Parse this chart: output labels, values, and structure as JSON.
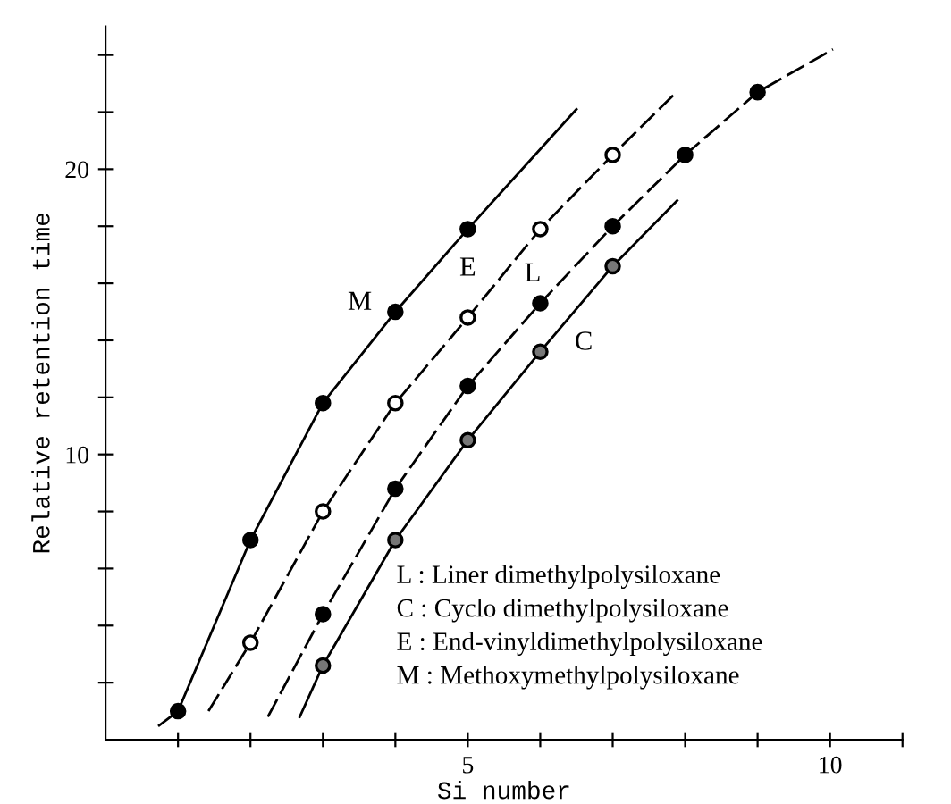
{
  "chart_data": {
    "type": "line",
    "xlabel": "Si number",
    "ylabel": "Relative retention time",
    "xlim": [
      0,
      11
    ],
    "ylim": [
      0,
      25
    ],
    "xticks": [
      {
        "value": 1,
        "label": null
      },
      {
        "value": 2,
        "label": null
      },
      {
        "value": 3,
        "label": null
      },
      {
        "value": 4,
        "label": null
      },
      5,
      {
        "value": 6,
        "label": null
      },
      {
        "value": 7,
        "label": null
      },
      {
        "value": 8,
        "label": null
      },
      {
        "value": 9,
        "label": null
      },
      10,
      {
        "value": 11,
        "label": null
      }
    ],
    "yticks": [
      {
        "value": 2,
        "label": null
      },
      {
        "value": 4,
        "label": null
      },
      {
        "value": 6,
        "label": null
      },
      {
        "value": 8,
        "label": null
      },
      10,
      {
        "value": 12,
        "label": null
      },
      {
        "value": 14,
        "label": null
      },
      {
        "value": 16,
        "label": null
      },
      {
        "value": 18,
        "label": null
      },
      20,
      {
        "value": 22,
        "label": null
      },
      {
        "value": 24,
        "label": null
      }
    ],
    "grid": false,
    "series": [
      {
        "color": "#000000",
        "line_style": "solid",
        "marker": "none",
        "x": [
          0.74,
          1,
          2,
          3,
          4,
          5,
          6.5
        ],
        "values": [
          0.5,
          1.0,
          7.0,
          11.8,
          15.0,
          17.9,
          22.1
        ]
      },
      {
        "color": "#000000",
        "line_style": "dashed",
        "marker": "none",
        "x": [
          1.42,
          2,
          3,
          4,
          5,
          6,
          7,
          7.88
        ],
        "values": [
          1.0,
          3.4,
          8.0,
          11.8,
          14.8,
          17.9,
          20.5,
          22.7
        ]
      },
      {
        "color": "#000000",
        "line_style": "dashed",
        "marker": "none",
        "x": [
          2.24,
          3,
          4,
          5,
          6,
          7,
          8,
          9,
          10.04
        ],
        "values": [
          0.8,
          4.4,
          8.8,
          12.4,
          15.3,
          18.0,
          20.5,
          22.7,
          24.2
        ]
      },
      {
        "color": "#000000",
        "line_style": "solid",
        "marker": "none",
        "x": [
          2.68,
          3,
          4,
          5,
          6,
          7,
          7.89
        ],
        "values": [
          0.8,
          2.6,
          7.0,
          10.5,
          13.6,
          16.6,
          18.9
        ]
      },
      {
        "type": "scatter",
        "color": "#000000",
        "marker": "circle",
        "x": [
          1,
          2,
          3,
          4,
          5
        ],
        "values": [
          1.0,
          7.0,
          11.8,
          15.0,
          17.9
        ]
      },
      {
        "type": "scatter",
        "color": "#ffffff",
        "marker": "circle",
        "x": [
          2,
          3,
          4,
          5,
          6,
          7
        ],
        "values": [
          3.4,
          8.0,
          11.8,
          14.8,
          17.9,
          20.5
        ]
      },
      {
        "type": "scatter",
        "color": "#000000",
        "marker": "circle",
        "x": [
          3,
          4,
          5,
          6,
          7,
          8,
          9
        ],
        "values": [
          4.4,
          8.8,
          12.4,
          15.3,
          18.0,
          20.5,
          22.7
        ]
      },
      {
        "type": "scatter",
        "color": "#777777",
        "marker": "circle",
        "x": [
          3,
          4,
          5,
          6,
          7
        ],
        "values": [
          2.6,
          7.0,
          10.5,
          13.6,
          16.6
        ]
      }
    ],
    "annotations": [
      "M",
      "E",
      "L",
      "C",
      "L : Liner dimethylpolysiloxane",
      "C : Cyclo dimethylpolysiloxane",
      "E : End-vinyldimethylpolysiloxane",
      "M : Methoxymethylpolysiloxane"
    ]
  }
}
